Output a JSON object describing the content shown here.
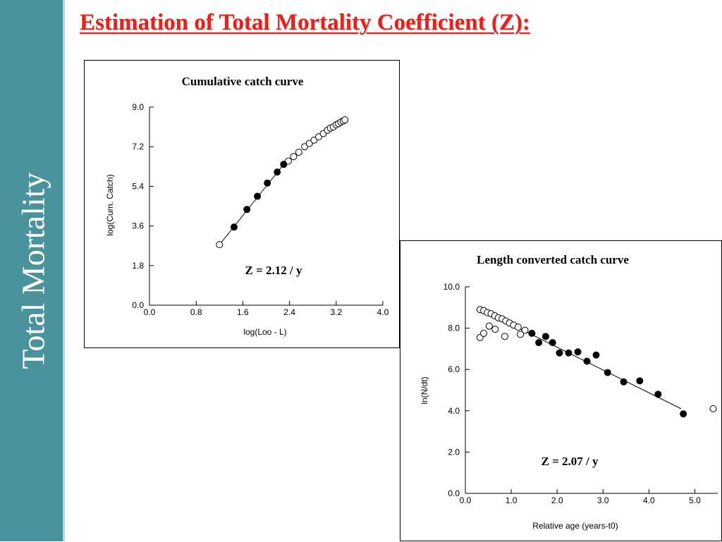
{
  "sidebar": {
    "title": "Total Mortality"
  },
  "slide": {
    "title": "Estimation of Total Mortality Coefficient (Z):"
  },
  "chart_data": [
    {
      "type": "scatter",
      "title": "Cumulative catch curve",
      "xlabel": "log(Loo - L)",
      "ylabel": "log(Cum. Catch)",
      "annotation": "Z = 2.12 / y",
      "xlim": [
        0,
        4
      ],
      "ylim": [
        0,
        9
      ],
      "xticks": [
        "0.0",
        "0.8",
        "1.6",
        "2.4",
        "3.2",
        "4.0"
      ],
      "yticks": [
        "0.0",
        "1.8",
        "3.6",
        "5.4",
        "7.2",
        "9.0"
      ],
      "series": [
        {
          "marker": "open",
          "x": [
            1.2,
            2.38,
            2.47,
            2.56,
            2.66,
            2.74,
            2.82,
            2.9,
            2.98,
            3.05,
            3.1,
            3.15,
            3.2,
            3.24,
            3.28,
            3.32,
            3.35
          ],
          "y": [
            2.75,
            6.55,
            6.75,
            6.95,
            7.2,
            7.35,
            7.5,
            7.65,
            7.8,
            7.95,
            8.05,
            8.1,
            8.2,
            8.25,
            8.32,
            8.37,
            8.42
          ]
        },
        {
          "marker": "filled",
          "x": [
            1.45,
            1.67,
            1.85,
            2.02,
            2.19,
            2.3
          ],
          "y": [
            3.55,
            4.35,
            4.95,
            5.55,
            6.05,
            6.4
          ]
        }
      ],
      "fit_line": {
        "x": [
          1.2,
          2.3
        ],
        "y": [
          2.75,
          6.4
        ]
      }
    },
    {
      "type": "scatter",
      "title": "Length converted catch curve",
      "xlabel": "Relative age (years-t0)",
      "ylabel": "ln(N/dt)",
      "annotation": "Z = 2.07 / y",
      "xlim": [
        0,
        5.5
      ],
      "ylim": [
        0,
        10
      ],
      "xticks": [
        "0.0",
        "1.0",
        "2.0",
        "3.0",
        "4.0",
        "5.0"
      ],
      "yticks": [
        "0.0",
        "2.0",
        "4.0",
        "6.0",
        "8.0",
        "10.0"
      ],
      "series": [
        {
          "marker": "open",
          "x": [
            0.32,
            0.4,
            0.48,
            0.56,
            0.64,
            0.72,
            0.8,
            0.88,
            0.96,
            1.05,
            1.15,
            1.3,
            0.32,
            0.4,
            0.52,
            0.65,
            0.86,
            1.2,
            5.4
          ],
          "y": [
            8.9,
            8.85,
            8.75,
            8.7,
            8.6,
            8.5,
            8.45,
            8.35,
            8.25,
            8.15,
            8.05,
            7.9,
            7.55,
            7.75,
            8.1,
            7.95,
            7.6,
            7.7,
            4.1
          ]
        },
        {
          "marker": "filled",
          "x": [
            1.45,
            1.6,
            1.75,
            1.9,
            2.05,
            2.25,
            2.45,
            2.65,
            2.85,
            3.1,
            3.45,
            3.8,
            4.2,
            4.75
          ],
          "y": [
            7.75,
            7.3,
            7.6,
            7.3,
            6.8,
            6.8,
            6.85,
            6.4,
            6.7,
            5.85,
            5.4,
            5.45,
            4.8,
            3.85
          ]
        }
      ],
      "fit_line": {
        "x": [
          0.3,
          4.7
        ],
        "y": [
          8.95,
          4.1
        ]
      }
    }
  ]
}
